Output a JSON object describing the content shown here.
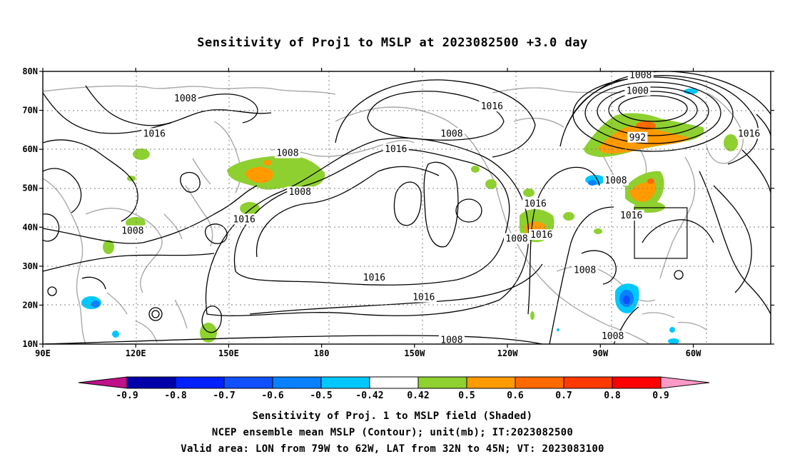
{
  "title": "Sensitivity of Proj1 to MSLP at 2023082500 +3.0 day",
  "axes": {
    "lat_ticks": [
      {
        "value": 80,
        "label": "80N"
      },
      {
        "value": 70,
        "label": "70N"
      },
      {
        "value": 60,
        "label": "60N"
      },
      {
        "value": 50,
        "label": "50N"
      },
      {
        "value": 40,
        "label": "40N"
      },
      {
        "value": 30,
        "label": "30N"
      },
      {
        "value": 20,
        "label": "20N"
      },
      {
        "value": 10,
        "label": "10N"
      }
    ],
    "lon_ticks": [
      {
        "value": 90,
        "label": "90E"
      },
      {
        "value": 120,
        "label": "120E"
      },
      {
        "value": 150,
        "label": "150E"
      },
      {
        "value": 180,
        "label": "180"
      },
      {
        "value": 210,
        "label": "150W"
      },
      {
        "value": 240,
        "label": "120W"
      },
      {
        "value": 270,
        "label": "90W"
      },
      {
        "value": 300,
        "label": "60W"
      }
    ],
    "lon_range": [
      90,
      325
    ],
    "lat_range": [
      10,
      80
    ]
  },
  "contour_labels": [
    {
      "text": "1008",
      "lon": 136,
      "lat": 73
    },
    {
      "text": "1016",
      "lon": 126,
      "lat": 64
    },
    {
      "text": "1008",
      "lon": 169,
      "lat": 59
    },
    {
      "text": "1008",
      "lon": 173,
      "lat": 49
    },
    {
      "text": "1016",
      "lon": 155,
      "lat": 42
    },
    {
      "text": "1008",
      "lon": 119,
      "lat": 39
    },
    {
      "text": "1016",
      "lon": 197,
      "lat": 27
    },
    {
      "text": "1016",
      "lon": 213,
      "lat": 22
    },
    {
      "text": "1008",
      "lon": 222,
      "lat": 11
    },
    {
      "text": "1016",
      "lon": 204,
      "lat": 60
    },
    {
      "text": "1008",
      "lon": 222,
      "lat": 64
    },
    {
      "text": "1016",
      "lon": 235,
      "lat": 71
    },
    {
      "text": "1008",
      "lon": 283,
      "lat": 79
    },
    {
      "text": "1000",
      "lon": 282,
      "lat": 75
    },
    {
      "text": "992",
      "lon": 282,
      "lat": 63
    },
    {
      "text": "1016",
      "lon": 318,
      "lat": 64
    },
    {
      "text": "1008",
      "lon": 275,
      "lat": 52
    },
    {
      "text": "1016",
      "lon": 249,
      "lat": 46
    },
    {
      "text": "1016",
      "lon": 280,
      "lat": 43
    },
    {
      "text": "1008",
      "lon": 243,
      "lat": 37
    },
    {
      "text": "1016",
      "lon": 251,
      "lat": 38
    },
    {
      "text": "1008",
      "lon": 265,
      "lat": 29
    },
    {
      "text": "1008",
      "lon": 274,
      "lat": 12
    }
  ],
  "valid_box": {
    "lon_min": 281,
    "lon_max": 298,
    "lat_min": 32,
    "lat_max": 45
  },
  "colorbar": {
    "labels": [
      "-0.9",
      "-0.8",
      "-0.7",
      "-0.6",
      "-0.5",
      "-0.42",
      "0.42",
      "0.5",
      "0.6",
      "0.7",
      "0.8",
      "0.9"
    ],
    "colors": [
      "#0000aa",
      "#0020ff",
      "#1050ff",
      "#0a80ff",
      "#00c8ff",
      "#ffffff",
      "#8ed030",
      "#ff9a00",
      "#ff6a00",
      "#ff3a00",
      "#ff0000"
    ],
    "low_end_color": "#c0108a",
    "high_end_color": "#ff9ac8"
  },
  "captions": [
    "Sensitivity of Proj. 1 to MSLP field (Shaded)",
    "NCEP ensemble mean MSLP (Contour); unit(mb); IT:2023082500",
    "Valid area: LON from 79W to 62W, LAT from 32N to 45N; VT: 2023083100"
  ]
}
